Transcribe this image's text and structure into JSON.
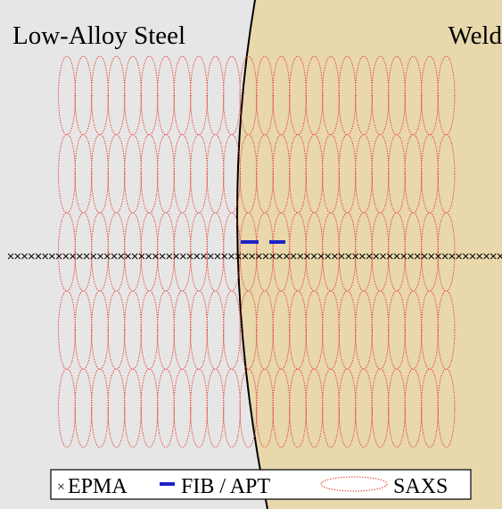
{
  "regions": {
    "left": {
      "label": "Low-Alloy Steel",
      "color": "#e6e6e6"
    },
    "right": {
      "label": "Weld",
      "color": "#e8d8ac"
    }
  },
  "legend": {
    "items": [
      {
        "symbol": "×",
        "label": "EPMA"
      },
      {
        "symbol": "line",
        "label": "FIB / APT"
      },
      {
        "symbol": "ellipse",
        "label": "SAXS"
      }
    ]
  },
  "colors": {
    "saxs": "#e8302a",
    "fib_apt": "#1e22c8",
    "epma": "#000000",
    "boundary": "#000000"
  },
  "markers": {
    "saxs_grid": {
      "columns": 24,
      "rows": 5
    },
    "fib_apt_count": 2,
    "epma_count": 72
  }
}
